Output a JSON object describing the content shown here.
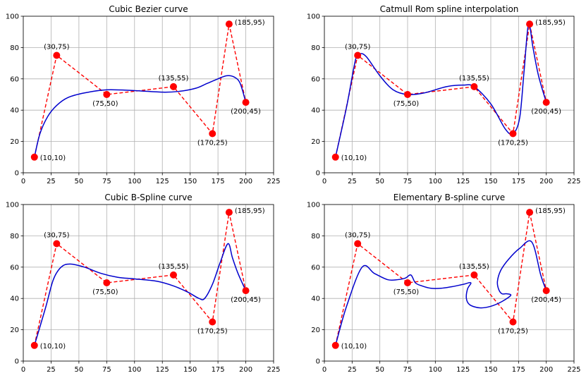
{
  "chart_data": [
    {
      "type": "line",
      "title": "Cubic Bezier curve",
      "xlim": [
        0,
        225
      ],
      "ylim": [
        0,
        100
      ],
      "xticks": [
        0,
        25,
        50,
        75,
        100,
        125,
        150,
        175,
        200,
        225
      ],
      "yticks": [
        0,
        20,
        40,
        60,
        80,
        100
      ],
      "grid": true,
      "control_points": [
        [
          10,
          10
        ],
        [
          30,
          75
        ],
        [
          75,
          50
        ],
        [
          135,
          55
        ],
        [
          170,
          25
        ],
        [
          185,
          95
        ],
        [
          200,
          45
        ]
      ],
      "point_labels": [
        "(10,10)",
        "(30,75)",
        "(75,50)",
        "(135,55)",
        "(170,25)",
        "(185,95)",
        "(200,45)"
      ],
      "point_color": "#ff0000",
      "polygon_color": "#ff0000",
      "curve_color": "#0000cd",
      "curve": [
        [
          10,
          10
        ],
        [
          15,
          25
        ],
        [
          22,
          36
        ],
        [
          30,
          43
        ],
        [
          40,
          48
        ],
        [
          55,
          51
        ],
        [
          75,
          53
        ],
        [
          100,
          52.5
        ],
        [
          125,
          51.5
        ],
        [
          140,
          52
        ],
        [
          155,
          54
        ],
        [
          165,
          57
        ],
        [
          175,
          60
        ],
        [
          183,
          62
        ],
        [
          190,
          61
        ],
        [
          195,
          57
        ],
        [
          200,
          45
        ]
      ]
    },
    {
      "type": "line",
      "title": "Catmull Rom spline interpolation",
      "xlim": [
        0,
        225
      ],
      "ylim": [
        0,
        100
      ],
      "xticks": [
        0,
        25,
        50,
        75,
        100,
        125,
        150,
        175,
        200,
        225
      ],
      "yticks": [
        0,
        20,
        40,
        60,
        80,
        100
      ],
      "grid": true,
      "control_points": [
        [
          10,
          10
        ],
        [
          30,
          75
        ],
        [
          75,
          50
        ],
        [
          135,
          55
        ],
        [
          170,
          25
        ],
        [
          185,
          95
        ],
        [
          200,
          45
        ]
      ],
      "point_labels": [
        "(10,10)",
        "(30,75)",
        "(75,50)",
        "(135,55)",
        "(170,25)",
        "(185,95)",
        "(200,45)"
      ],
      "point_color": "#ff0000",
      "polygon_color": "#ff0000",
      "curve_color": "#0000cd",
      "curve": [
        [
          10,
          10
        ],
        [
          20,
          42
        ],
        [
          28,
          72
        ],
        [
          32,
          76
        ],
        [
          38,
          74
        ],
        [
          50,
          62
        ],
        [
          62,
          53
        ],
        [
          75,
          50
        ],
        [
          90,
          51
        ],
        [
          110,
          55
        ],
        [
          125,
          56
        ],
        [
          135,
          55
        ],
        [
          150,
          44
        ],
        [
          163,
          28
        ],
        [
          170,
          25
        ],
        [
          176,
          35
        ],
        [
          180,
          65
        ],
        [
          184,
          95
        ],
        [
          188,
          80
        ],
        [
          193,
          62
        ],
        [
          200,
          45
        ]
      ]
    },
    {
      "type": "line",
      "title": "Cubic B-Spline curve",
      "xlim": [
        0,
        225
      ],
      "ylim": [
        0,
        100
      ],
      "xticks": [
        0,
        25,
        50,
        75,
        100,
        125,
        150,
        175,
        200,
        225
      ],
      "yticks": [
        0,
        20,
        40,
        60,
        80,
        100
      ],
      "grid": true,
      "control_points": [
        [
          10,
          10
        ],
        [
          30,
          75
        ],
        [
          75,
          50
        ],
        [
          135,
          55
        ],
        [
          170,
          25
        ],
        [
          185,
          95
        ],
        [
          200,
          45
        ]
      ],
      "point_labels": [
        "(10,10)",
        "(30,75)",
        "(75,50)",
        "(135,55)",
        "(170,25)",
        "(185,95)",
        "(200,45)"
      ],
      "point_color": "#ff0000",
      "polygon_color": "#ff0000",
      "curve_color": "#0000cd",
      "curve": [
        [
          10,
          10
        ],
        [
          20,
          34
        ],
        [
          27,
          52
        ],
        [
          34,
          60
        ],
        [
          42,
          62
        ],
        [
          55,
          60
        ],
        [
          70,
          56
        ],
        [
          85,
          53.5
        ],
        [
          100,
          52.5
        ],
        [
          120,
          51
        ],
        [
          135,
          48
        ],
        [
          148,
          44
        ],
        [
          158,
          40
        ],
        [
          163,
          40
        ],
        [
          170,
          49
        ],
        [
          177,
          63
        ],
        [
          184,
          75
        ],
        [
          188,
          66
        ],
        [
          193,
          56
        ],
        [
          200,
          45
        ]
      ]
    },
    {
      "type": "line",
      "title": "Elementary B-spline curve",
      "xlim": [
        0,
        225
      ],
      "ylim": [
        0,
        100
      ],
      "xticks": [
        0,
        25,
        50,
        75,
        100,
        125,
        150,
        175,
        200,
        225
      ],
      "yticks": [
        0,
        20,
        40,
        60,
        80,
        100
      ],
      "grid": true,
      "control_points": [
        [
          10,
          10
        ],
        [
          30,
          75
        ],
        [
          75,
          50
        ],
        [
          135,
          55
        ],
        [
          170,
          25
        ],
        [
          185,
          95
        ],
        [
          200,
          45
        ]
      ],
      "point_labels": [
        "(10,10)",
        "(30,75)",
        "(75,50)",
        "(135,55)",
        "(170,25)",
        "(185,95)",
        "(200,45)"
      ],
      "point_color": "#ff0000",
      "polygon_color": "#ff0000",
      "curve_color": "#0000cd",
      "curve": [
        [
          10,
          10
        ],
        [
          20,
          35
        ],
        [
          34,
          60
        ],
        [
          45,
          56
        ],
        [
          57,
          52
        ],
        [
          66,
          52
        ],
        [
          73,
          53
        ],
        [
          78,
          55
        ],
        [
          82,
          50
        ],
        [
          88,
          48
        ],
        [
          96,
          46.5
        ],
        [
          105,
          46.5
        ],
        [
          115,
          47.5
        ],
        [
          125,
          49
        ],
        [
          132,
          50
        ],
        [
          129,
          46
        ],
        [
          128,
          40
        ],
        [
          131,
          36
        ],
        [
          140,
          34
        ],
        [
          150,
          35
        ],
        [
          160,
          38
        ],
        [
          168,
          42
        ],
        [
          164,
          43
        ],
        [
          160,
          43
        ],
        [
          157,
          46
        ],
        [
          156,
          51
        ],
        [
          159,
          58
        ],
        [
          166,
          65
        ],
        [
          176,
          72
        ],
        [
          187,
          76
        ],
        [
          195,
          55
        ],
        [
          200,
          45
        ]
      ]
    }
  ]
}
